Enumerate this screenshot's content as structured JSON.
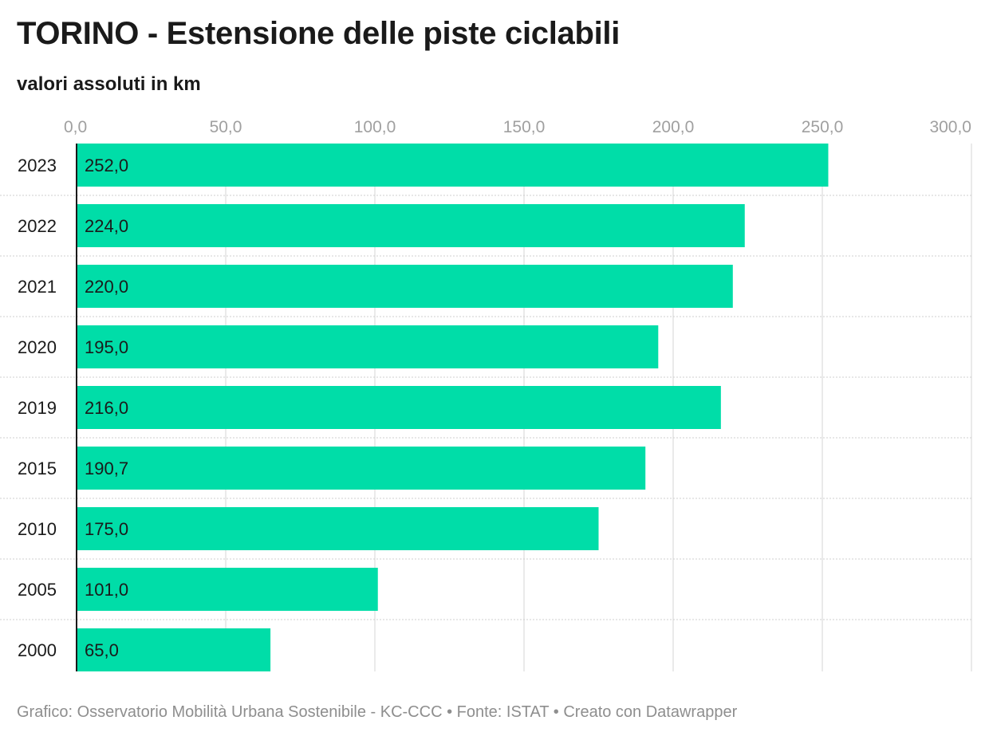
{
  "chart_data": {
    "type": "bar",
    "orientation": "horizontal",
    "title": "TORINO - Estensione delle piste ciclabili",
    "subtitle": "valori assoluti in km",
    "categories": [
      "2023",
      "2022",
      "2021",
      "2020",
      "2019",
      "2015",
      "2010",
      "2005",
      "2000"
    ],
    "values": [
      252.0,
      224.0,
      220.0,
      195.0,
      216.0,
      190.7,
      175.0,
      101.0,
      65.0
    ],
    "value_labels": [
      "252,0",
      "224,0",
      "220,0",
      "195,0",
      "216,0",
      "190,7",
      "175,0",
      "101,0",
      "65,0"
    ],
    "x_ticks": [
      0,
      50,
      100,
      150,
      200,
      250,
      300
    ],
    "x_tick_labels": [
      "0,0",
      "50,0",
      "100,0",
      "150,0",
      "200,0",
      "250,0",
      "300,0"
    ],
    "xlim": [
      0,
      300
    ],
    "grid": true,
    "bar_color": "#00dda8",
    "footer": "Grafico: Osservatorio Mobilità Urbana Sostenibile - KC-CCC • Fonte: ISTAT • Creato con Datawrapper"
  }
}
